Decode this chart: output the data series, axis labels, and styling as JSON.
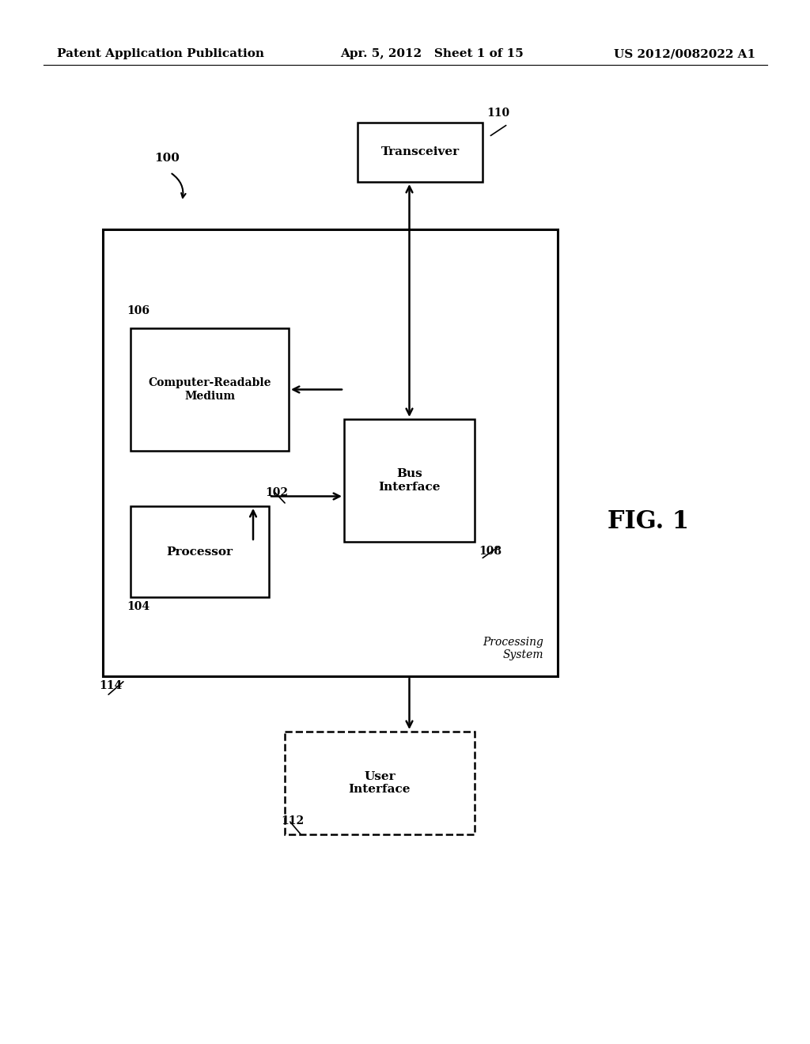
{
  "bg_color": "#ffffff",
  "header_left": "Patent Application Publication",
  "header_mid": "Apr. 5, 2012   Sheet 1 of 15",
  "header_right": "US 2012/0082022 A1",
  "fig_label": "FIG. 1",
  "label_100": "100",
  "label_110": "110",
  "label_106": "106",
  "label_104": "104",
  "label_108": "108",
  "label_102": "102",
  "label_114": "114",
  "label_112": "112",
  "transceiver_text": "Transceiver",
  "computer_readable_text": "Computer-Readable\nMedium",
  "processor_text": "Processor",
  "bus_interface_text": "Bus\nInterface",
  "processing_system_text": "Processing\nSystem",
  "user_interface_text": "User\nInterface"
}
